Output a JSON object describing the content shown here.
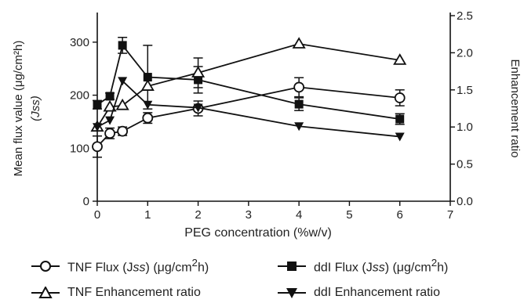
{
  "chart_data": {
    "type": "line",
    "x_label": "PEG concentration (%w/v)",
    "y_left_label": "Mean flux value (μg/cm²h)",
    "y_left_sublabel": "(Jss)",
    "y_right_label": "Enhancement ratio",
    "x_ticks": [
      "0",
      "1",
      "2",
      "3",
      "4",
      "5",
      "6",
      "7"
    ],
    "y_left_ticks": [
      "0",
      "100",
      "200",
      "300"
    ],
    "y_right_ticks": [
      "0.0",
      "0.5",
      "1.0",
      "1.5",
      "2.0",
      "2.5"
    ],
    "xlim": [
      0,
      7
    ],
    "ylim_left": [
      0,
      350
    ],
    "ylim_right": [
      0,
      2.5
    ],
    "grid": false,
    "series": [
      {
        "name": "TNF Flux (Jss) (μg/cm²h)",
        "axis": "left",
        "marker": "open-circle",
        "x": [
          0,
          0.25,
          0.5,
          1,
          2,
          4,
          6
        ],
        "y": [
          103,
          128,
          132,
          157,
          175,
          215,
          195
        ],
        "err": [
          20,
          10,
          8,
          10,
          14,
          18,
          15
        ]
      },
      {
        "name": "ddI Flux (Jss) (μg/cm²h)",
        "axis": "left",
        "marker": "filled-square",
        "x": [
          0,
          0.25,
          0.5,
          1,
          2,
          4,
          6
        ],
        "y": [
          182,
          198,
          294,
          234,
          229,
          183,
          155
        ],
        "err": [
          8,
          6,
          15,
          60,
          25,
          12,
          10
        ]
      },
      {
        "name": "TNF Enhancement ratio",
        "axis": "right",
        "marker": "open-triangle-up",
        "x": [
          0,
          0.25,
          0.5,
          1,
          2,
          4,
          6
        ],
        "y": [
          1.0,
          1.27,
          1.29,
          1.55,
          1.73,
          2.12,
          1.9
        ],
        "err": [
          0,
          0,
          0,
          0,
          0.2,
          0,
          0
        ]
      },
      {
        "name": "ddI Enhancement ratio",
        "axis": "right",
        "marker": "filled-triangle-down",
        "x": [
          0,
          0.25,
          0.5,
          1,
          2,
          4,
          6
        ],
        "y": [
          1.0,
          1.09,
          1.62,
          1.3,
          1.26,
          1.01,
          0.87
        ],
        "err": [
          0,
          0,
          0,
          0,
          0,
          0,
          0
        ]
      }
    ]
  },
  "legend": {
    "items": [
      {
        "pre": "TNF Flux (J",
        "ital": "ss",
        "post": ") (μg/cm",
        "sup": "2",
        "tail": "h)"
      },
      {
        "pre": "ddI Flux (J",
        "ital": "ss",
        "post": ") (μg/cm",
        "sup": "2",
        "tail": "h)"
      },
      {
        "pre": "TNF Enhancement ratio",
        "ital": "",
        "post": "",
        "sup": "",
        "tail": ""
      },
      {
        "pre": "ddI Enhancement ratio",
        "ital": "",
        "post": "",
        "sup": "",
        "tail": ""
      }
    ]
  }
}
